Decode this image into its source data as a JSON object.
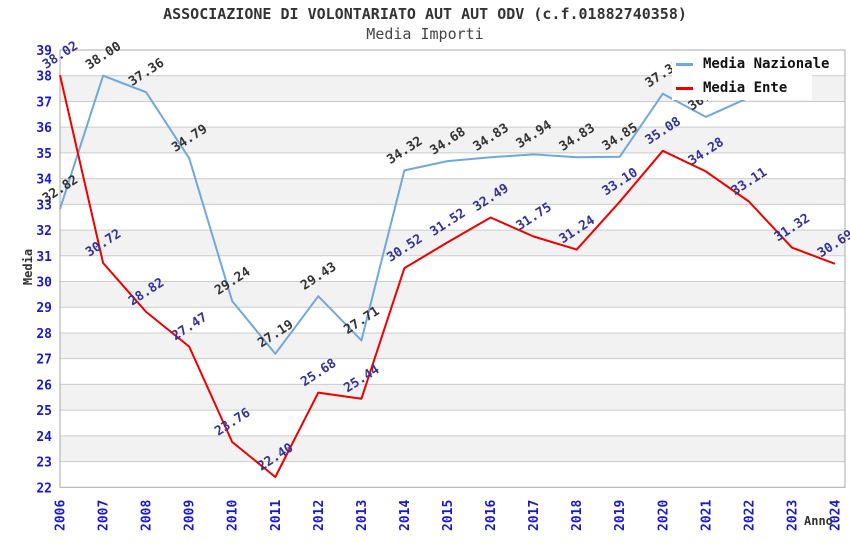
{
  "title": "ASSOCIAZIONE DI VOLONTARIATO AUT AUT ODV (c.f.01882740358)",
  "subtitle": "Media Importi",
  "legend": {
    "items": [
      {
        "label": "Media Nazionale",
        "color": "#6FA8DC"
      },
      {
        "label": "Media Ente",
        "color": "#EE0000"
      }
    ]
  },
  "axes": {
    "y_title": "Media",
    "x_title": "Anno",
    "y_ticks": [
      39,
      38,
      37,
      36,
      35,
      34,
      33,
      32,
      31,
      30,
      29,
      28,
      27,
      26,
      25,
      24,
      23,
      22
    ],
    "x_ticks": [
      "2006",
      "2007",
      "2008",
      "2009",
      "2010",
      "2011",
      "2012",
      "2013",
      "2014",
      "2015",
      "2016",
      "2017",
      "2018",
      "2019",
      "2020",
      "2021",
      "2022",
      "2023",
      "2024"
    ],
    "tick_color": "#1A1ACC"
  },
  "chart_data": {
    "type": "line",
    "x": [
      2006,
      2007,
      2008,
      2009,
      2010,
      2011,
      2012,
      2013,
      2014,
      2015,
      2016,
      2017,
      2018,
      2019,
      2020,
      2021,
      2022,
      2023,
      2024
    ],
    "series": [
      {
        "name": "Media Nazionale",
        "color": "#6FA8DC",
        "label_color": "#333333",
        "values": [
          32.82,
          38.0,
          37.36,
          34.79,
          29.24,
          27.19,
          29.43,
          27.71,
          34.32,
          34.68,
          34.83,
          34.94,
          34.83,
          34.85,
          37.3,
          36.4,
          37.15,
          null,
          null
        ]
      },
      {
        "name": "Media Ente",
        "color": "#EE0000",
        "label_color": "#333399",
        "values": [
          38.02,
          30.72,
          28.82,
          27.47,
          23.76,
          22.4,
          25.68,
          25.44,
          30.52,
          31.52,
          32.49,
          31.75,
          31.24,
          33.1,
          35.08,
          34.28,
          33.11,
          31.32,
          30.69
        ]
      }
    ],
    "ylim": [
      22,
      39
    ],
    "xlabel": "Anno",
    "ylabel": "Media",
    "grid": "horizontal",
    "band_color": "#F2F2F2",
    "grid_color": "#CCCCCC",
    "border_color": "#AAAAAA",
    "legend_position": "top-right"
  }
}
